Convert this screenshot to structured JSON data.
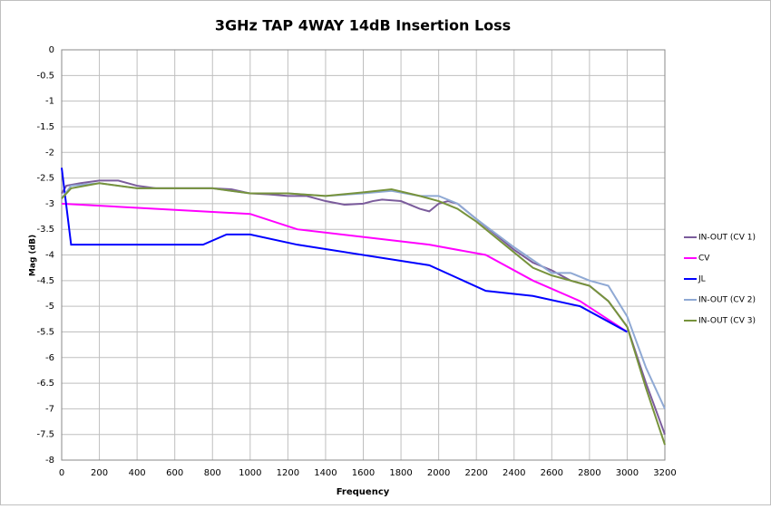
{
  "chart_data": {
    "type": "line",
    "title": "3GHz TAP 4WAY 14dB Insertion Loss",
    "x_label": "Frequency",
    "y_label": "Mag (dB)",
    "xlim": [
      0,
      3200
    ],
    "xticks": [
      0,
      200,
      400,
      600,
      800,
      1000,
      1200,
      1400,
      1600,
      1800,
      2000,
      2200,
      2400,
      2600,
      2800,
      3000,
      3200
    ],
    "ylim": [
      -8,
      0
    ],
    "yticks": [
      0,
      -0.5,
      -1,
      -1.5,
      -2,
      -2.5,
      -3,
      -3.5,
      -4,
      -4.5,
      -5,
      -5.5,
      -6,
      -6.5,
      -7,
      -7.5,
      -8
    ],
    "grid": true,
    "legend": "right",
    "series": [
      {
        "name": "IN-OUT (CV 1)",
        "color": "#7b5c9c",
        "x": [
          0,
          25,
          100,
          200,
          300,
          400,
          500,
          600,
          700,
          800,
          900,
          1000,
          1100,
          1200,
          1300,
          1400,
          1500,
          1600,
          1650,
          1700,
          1800,
          1900,
          1950,
          2000,
          2050,
          2100,
          2200,
          2300,
          2400,
          2500,
          2600,
          2700,
          2800,
          2900,
          3000,
          3100,
          3200
        ],
        "values": [
          -2.8,
          -2.65,
          -2.6,
          -2.55,
          -2.55,
          -2.65,
          -2.7,
          -2.7,
          -2.7,
          -2.7,
          -2.72,
          -2.8,
          -2.82,
          -2.85,
          -2.85,
          -2.95,
          -3.02,
          -3.0,
          -2.95,
          -2.92,
          -2.95,
          -3.1,
          -3.15,
          -3.0,
          -2.95,
          -3.0,
          -3.3,
          -3.6,
          -3.9,
          -4.15,
          -4.3,
          -4.5,
          -4.6,
          -4.9,
          -5.4,
          -6.5,
          -7.5
        ]
      },
      {
        "name": "CV",
        "color": "#ff00ff",
        "x": [
          0,
          1000,
          1250,
          1950,
          2250,
          2500,
          2750,
          3000
        ],
        "values": [
          -3.0,
          -3.2,
          -3.5,
          -3.8,
          -4.0,
          -4.5,
          -4.9,
          -5.5
        ]
      },
      {
        "name": "JL",
        "color": "#0000ff",
        "x": [
          0,
          50,
          750,
          875,
          1000,
          1250,
          1950,
          2250,
          2500,
          2750,
          3000
        ],
        "values": [
          -2.3,
          -3.8,
          -3.8,
          -3.6,
          -3.6,
          -3.8,
          -4.2,
          -4.7,
          -4.8,
          -5.0,
          -5.5
        ]
      },
      {
        "name": "IN-OUT (CV 2)",
        "color": "#8fa9d4",
        "x": [
          0,
          50,
          200,
          400,
          800,
          1000,
          1200,
          1400,
          1600,
          1750,
          1900,
          2000,
          2100,
          2200,
          2400,
          2500,
          2600,
          2700,
          2800,
          2900,
          3000,
          3100,
          3200
        ],
        "values": [
          -2.9,
          -2.65,
          -2.6,
          -2.7,
          -2.7,
          -2.8,
          -2.8,
          -2.85,
          -2.8,
          -2.75,
          -2.85,
          -2.85,
          -3.0,
          -3.3,
          -3.85,
          -4.1,
          -4.35,
          -4.35,
          -4.5,
          -4.6,
          -5.2,
          -6.2,
          -7.0
        ]
      },
      {
        "name": "IN-OUT (CV 3)",
        "color": "#77933c",
        "x": [
          0,
          50,
          200,
          400,
          800,
          1000,
          1200,
          1400,
          1600,
          1750,
          1900,
          2000,
          2100,
          2200,
          2400,
          2500,
          2600,
          2700,
          2800,
          2900,
          3000,
          3100,
          3200
        ],
        "values": [
          -2.9,
          -2.7,
          -2.6,
          -2.7,
          -2.7,
          -2.8,
          -2.8,
          -2.85,
          -2.78,
          -2.72,
          -2.85,
          -2.95,
          -3.1,
          -3.35,
          -3.95,
          -4.25,
          -4.4,
          -4.5,
          -4.6,
          -4.9,
          -5.4,
          -6.6,
          -7.7
        ]
      }
    ]
  }
}
